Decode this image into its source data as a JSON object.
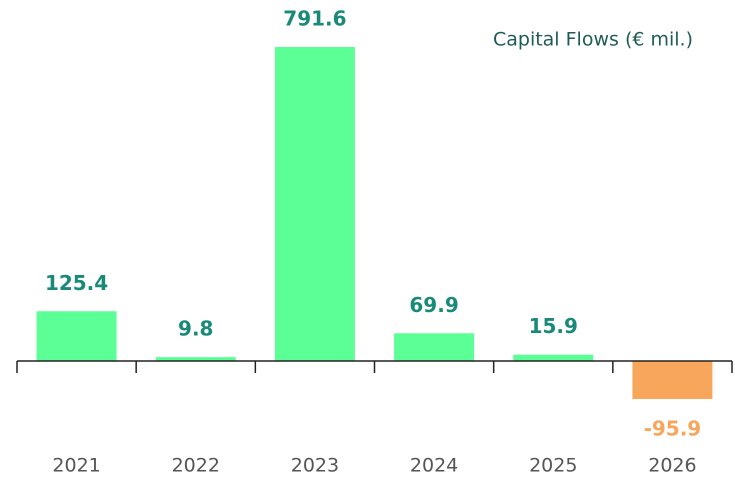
{
  "chart_data": {
    "type": "bar",
    "title": "Capital Flows (€ mil.)",
    "categories": [
      "2021",
      "2022",
      "2023",
      "2024",
      "2025",
      "2026"
    ],
    "values": [
      125.4,
      9.8,
      791.6,
      69.9,
      15.9,
      -95.9
    ],
    "color": "#5cff96",
    "negative_color": "#f7a65c",
    "label_color": "#1a8a78",
    "negative_label_color": "#f7a65c"
  }
}
